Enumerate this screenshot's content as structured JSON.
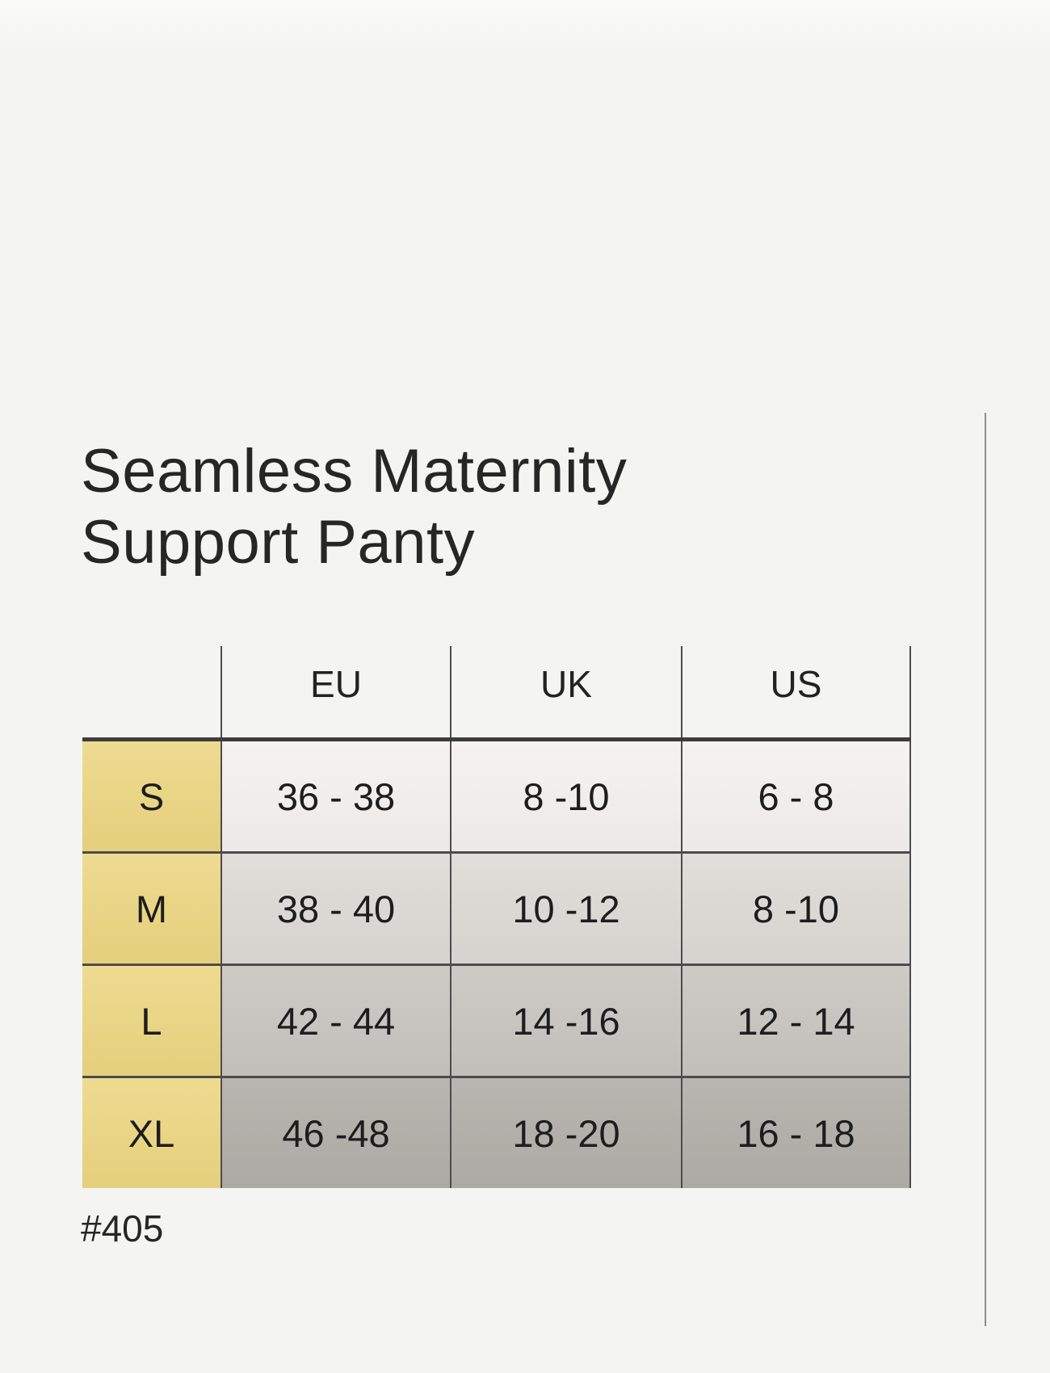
{
  "title": {
    "line1": "Seamless Maternity",
    "line2": "Support Panty"
  },
  "table": {
    "columns": [
      "EU",
      "UK",
      "US"
    ],
    "rows": [
      {
        "label": "S",
        "values": [
          "36 - 38",
          "8 -10",
          "6 - 8"
        ]
      },
      {
        "label": "M",
        "values": [
          "38 - 40",
          "10 -12",
          "8 -10"
        ]
      },
      {
        "label": "L",
        "values": [
          "42 - 44",
          "14 -16",
          "12 - 14"
        ]
      },
      {
        "label": "XL",
        "values": [
          "46 -48",
          "18 -20",
          "16 - 18"
        ]
      }
    ]
  },
  "footnote": {
    "product_code": "#405"
  },
  "colors": {
    "page_bg": "#f4f4f3",
    "size_label_bg": "#e9d585",
    "row_s_bg": "#f1efec",
    "row_m_bg": "#dcd9d5",
    "row_l_bg": "#c9c5c0",
    "row_xl_bg": "#b4b0ab",
    "grid_line": "#4c4c4c",
    "text": "#1d1d1d"
  },
  "chart_data": {
    "type": "table",
    "title": "Seamless Maternity Support Panty",
    "columns": [
      "",
      "EU",
      "UK",
      "US"
    ],
    "rows": [
      [
        "S",
        "36 - 38",
        "8 -10",
        "6 - 8"
      ],
      [
        "M",
        "38 - 40",
        "10 -12",
        "8 -10"
      ],
      [
        "L",
        "42 - 44",
        "14 -16",
        "12 - 14"
      ],
      [
        "XL",
        "46 -48",
        "18 -20",
        "16 - 18"
      ]
    ],
    "footnote": "#405",
    "layout": {
      "header_position": "top",
      "row_label_column": "highlighted-yellow",
      "grid": "on"
    }
  }
}
